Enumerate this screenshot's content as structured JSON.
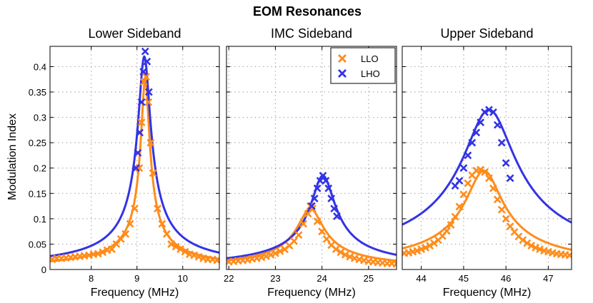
{
  "figure_title": "EOM Resonances",
  "colors": {
    "LLO": "#ff8c1a",
    "LHO": "#3333e6",
    "grid": "#9a9a9a",
    "axes": "#000000"
  },
  "chart_data": [
    {
      "type": "line",
      "title": "Lower Sideband",
      "xlabel": "Frequency (MHz)",
      "ylabel": "Modulation Index",
      "xlim": [
        7.1,
        10.8
      ],
      "ylim": [
        0,
        0.44
      ],
      "xticks": [
        8,
        9,
        10
      ],
      "yticks": [
        0,
        0.05,
        0.1,
        0.15,
        0.2,
        0.25,
        0.3,
        0.35,
        0.4
      ],
      "ytick_labels": [
        "0",
        "0.05",
        "0.1",
        "0.15",
        "0.2",
        "0.25",
        "0.3",
        "0.35",
        "0.4"
      ],
      "grid": true,
      "series": [
        {
          "name": "LLO",
          "kind": "fit",
          "f0": 9.18,
          "A": 0.375,
          "gamma": 0.09,
          "x": [
            7.1,
            10.8
          ]
        },
        {
          "name": "LHO",
          "kind": "fit",
          "f0": 9.16,
          "A": 0.42,
          "gamma": 0.13,
          "x": [
            7.1,
            10.8
          ]
        },
        {
          "name": "LLO",
          "kind": "measured",
          "x": [
            7.15,
            7.25,
            7.35,
            7.45,
            7.55,
            7.65,
            7.75,
            7.85,
            7.95,
            8.05,
            8.15,
            8.25,
            8.35,
            8.45,
            8.55,
            8.65,
            8.75,
            8.85,
            8.95,
            9.05,
            9.1,
            9.15,
            9.2,
            9.25,
            9.3,
            9.35,
            9.45,
            9.55,
            9.65,
            9.75,
            9.85,
            9.95,
            10.05,
            10.15,
            10.25,
            10.35,
            10.45,
            10.55,
            10.65,
            10.75
          ],
          "y": [
            0.02,
            0.022,
            0.022,
            0.023,
            0.024,
            0.025,
            0.026,
            0.027,
            0.028,
            0.03,
            0.031,
            0.034,
            0.038,
            0.04,
            0.05,
            0.06,
            0.07,
            0.09,
            0.12,
            0.2,
            0.29,
            0.37,
            0.38,
            0.33,
            0.25,
            0.19,
            0.12,
            0.09,
            0.07,
            0.05,
            0.045,
            0.04,
            0.035,
            0.03,
            0.028,
            0.025,
            0.022,
            0.02,
            0.02,
            0.018
          ]
        },
        {
          "name": "LHO",
          "kind": "measured",
          "x": [
            8.98,
            9.02,
            9.06,
            9.1,
            9.14,
            9.18,
            9.22,
            9.26
          ],
          "y": [
            0.2,
            0.23,
            0.27,
            0.33,
            0.39,
            0.43,
            0.41,
            0.35
          ]
        }
      ]
    },
    {
      "type": "line",
      "title": "IMC Sideband",
      "xlabel": "Frequency (MHz)",
      "ylabel": "",
      "xlim": [
        21.95,
        25.6
      ],
      "ylim": [
        0,
        0.44
      ],
      "xticks": [
        22,
        23,
        24,
        25
      ],
      "yticks": [
        0,
        0.05,
        0.1,
        0.15,
        0.2,
        0.25,
        0.3,
        0.35,
        0.4
      ],
      "ytick_labels": [],
      "grid": true,
      "legend": {
        "position": "top-right",
        "entries": [
          "LLO",
          "LHO"
        ]
      },
      "series": [
        {
          "name": "LLO",
          "kind": "fit",
          "f0": 23.75,
          "A": 0.12,
          "gamma": 0.27,
          "x": [
            21.95,
            25.6
          ]
        },
        {
          "name": "LHO",
          "kind": "fit",
          "f0": 24.02,
          "A": 0.185,
          "gamma": 0.25,
          "x": [
            21.95,
            25.6
          ]
        },
        {
          "name": "LLO",
          "kind": "measured",
          "x": [
            22.0,
            22.1,
            22.2,
            22.3,
            22.4,
            22.5,
            22.6,
            22.7,
            22.8,
            22.9,
            23.0,
            23.1,
            23.2,
            23.3,
            23.4,
            23.5,
            23.6,
            23.7,
            23.75,
            23.8,
            23.9,
            24.0,
            24.1,
            24.2,
            24.3,
            24.4,
            24.5,
            24.6,
            24.7,
            24.8,
            24.9,
            25.0,
            25.1,
            25.2,
            25.3,
            25.4,
            25.5,
            25.6
          ],
          "y": [
            0.015,
            0.016,
            0.017,
            0.018,
            0.019,
            0.021,
            0.022,
            0.024,
            0.026,
            0.029,
            0.032,
            0.036,
            0.04,
            0.047,
            0.056,
            0.068,
            0.09,
            0.11,
            0.125,
            0.12,
            0.095,
            0.075,
            0.06,
            0.048,
            0.04,
            0.034,
            0.029,
            0.025,
            0.022,
            0.02,
            0.018,
            0.016,
            0.015,
            0.014,
            0.013,
            0.012,
            0.012,
            0.011
          ]
        },
        {
          "name": "LHO",
          "kind": "measured",
          "x": [
            23.78,
            23.84,
            23.9,
            23.96,
            24.02,
            24.08,
            24.14,
            24.2,
            24.26,
            24.32
          ],
          "y": [
            0.125,
            0.14,
            0.16,
            0.175,
            0.185,
            0.175,
            0.16,
            0.14,
            0.12,
            0.105
          ]
        }
      ]
    },
    {
      "type": "line",
      "title": "Upper Sideband",
      "xlabel": "Frequency (MHz)",
      "ylabel": "",
      "xlim": [
        43.55,
        47.55
      ],
      "ylim": [
        0,
        0.44
      ],
      "xticks": [
        44,
        45,
        46,
        47
      ],
      "yticks": [
        0,
        0.05,
        0.1,
        0.15,
        0.2,
        0.25,
        0.3,
        0.35,
        0.4
      ],
      "ytick_labels": [],
      "grid": true,
      "series": [
        {
          "name": "LLO",
          "kind": "fit",
          "f0": 45.48,
          "A": 0.195,
          "gamma": 0.42,
          "x": [
            43.55,
            47.55
          ]
        },
        {
          "name": "LHO",
          "kind": "fit",
          "f0": 45.6,
          "A": 0.315,
          "gamma": 0.6,
          "x": [
            43.55,
            47.55
          ]
        },
        {
          "name": "LLO",
          "kind": "measured",
          "x": [
            43.6,
            43.7,
            43.8,
            43.9,
            44.0,
            44.1,
            44.2,
            44.3,
            44.4,
            44.5,
            44.6,
            44.7,
            44.8,
            44.9,
            45.0,
            45.1,
            45.2,
            45.3,
            45.4,
            45.5,
            45.6,
            45.7,
            45.8,
            45.9,
            46.0,
            46.1,
            46.2,
            46.3,
            46.4,
            46.5,
            46.6,
            46.7,
            46.8,
            46.9,
            47.0,
            47.1,
            47.2,
            47.3,
            47.4,
            47.5
          ],
          "y": [
            0.032,
            0.033,
            0.035,
            0.037,
            0.04,
            0.043,
            0.047,
            0.052,
            0.058,
            0.066,
            0.076,
            0.088,
            0.104,
            0.124,
            0.148,
            0.17,
            0.186,
            0.195,
            0.197,
            0.192,
            0.18,
            0.16,
            0.138,
            0.118,
            0.1,
            0.085,
            0.074,
            0.065,
            0.058,
            0.052,
            0.047,
            0.043,
            0.04,
            0.037,
            0.035,
            0.033,
            0.031,
            0.03,
            0.029,
            0.028
          ]
        },
        {
          "name": "LHO",
          "kind": "measured",
          "x": [
            44.8,
            44.9,
            45.0,
            45.1,
            45.2,
            45.3,
            45.4,
            45.5,
            45.6,
            45.7,
            45.8,
            45.9,
            46.0,
            46.1
          ],
          "y": [
            0.165,
            0.175,
            0.2,
            0.225,
            0.25,
            0.27,
            0.29,
            0.31,
            0.315,
            0.31,
            0.285,
            0.25,
            0.21,
            0.18
          ]
        }
      ]
    }
  ]
}
